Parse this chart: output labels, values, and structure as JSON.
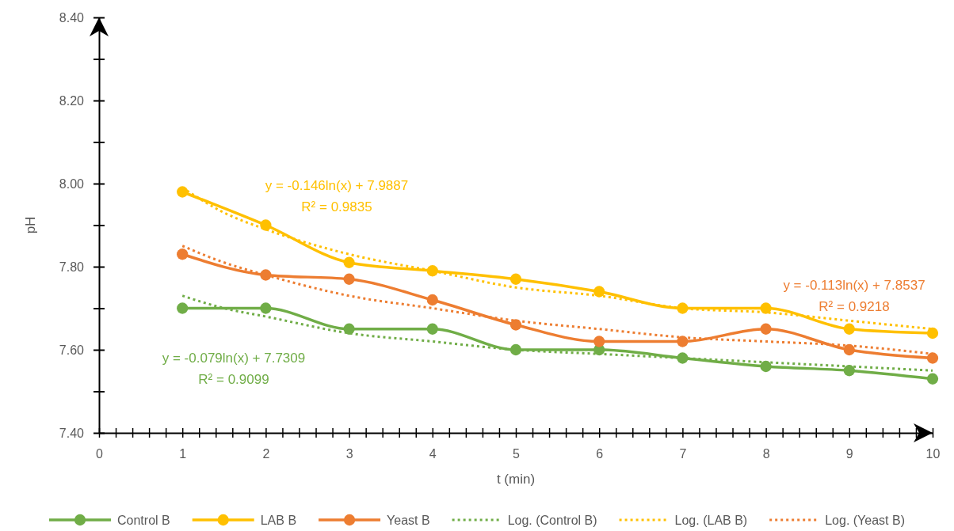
{
  "chart_data": {
    "type": "line",
    "xlabel": "t (min)",
    "ylabel": "pH",
    "x": [
      1,
      2,
      3,
      4,
      5,
      6,
      7,
      8,
      9,
      10
    ],
    "series": [
      {
        "name": "Control B",
        "color": "#70ad47",
        "values": [
          7.7,
          7.7,
          7.65,
          7.65,
          7.6,
          7.6,
          7.58,
          7.56,
          7.55,
          7.53
        ]
      },
      {
        "name": "LAB B",
        "color": "#ffc000",
        "values": [
          7.98,
          7.9,
          7.81,
          7.79,
          7.77,
          7.74,
          7.7,
          7.7,
          7.65,
          7.64
        ]
      },
      {
        "name": "Yeast B",
        "color": "#ed7d31",
        "values": [
          7.83,
          7.78,
          7.77,
          7.72,
          7.66,
          7.62,
          7.62,
          7.65,
          7.6,
          7.58
        ]
      },
      {
        "name": "Log. (Control B)",
        "type": "line",
        "color": "#70ad47",
        "line_style": "dotted",
        "marker": "none",
        "x": [
          1,
          1.5,
          2,
          3,
          4,
          5,
          6,
          7,
          8,
          9,
          10
        ],
        "values": [
          7.73,
          7.7,
          7.68,
          7.64,
          7.62,
          7.6,
          7.59,
          7.58,
          7.57,
          7.56,
          7.55
        ]
      },
      {
        "name": "Log. (LAB B)",
        "type": "line",
        "color": "#ffc000",
        "line_style": "dotted",
        "marker": "none",
        "x": [
          1,
          1.5,
          2,
          3,
          4,
          5,
          6,
          7,
          8,
          9,
          10
        ],
        "values": [
          7.99,
          7.93,
          7.89,
          7.83,
          7.79,
          7.75,
          7.73,
          7.7,
          7.69,
          7.67,
          7.65
        ]
      },
      {
        "name": "Log. (Yeast B)",
        "type": "line",
        "color": "#ed7d31",
        "line_style": "dotted",
        "marker": "none",
        "x": [
          1,
          1.5,
          2,
          3,
          4,
          5,
          6,
          7,
          8,
          9,
          10
        ],
        "values": [
          7.85,
          7.81,
          7.78,
          7.73,
          7.7,
          7.67,
          7.65,
          7.63,
          7.62,
          7.61,
          7.59
        ]
      }
    ],
    "xlim": [
      0,
      10
    ],
    "ylim": [
      7.4,
      8.4
    ],
    "xticks": [
      0,
      {
        "value": 0.2,
        "label": null
      },
      {
        "value": 0.4,
        "label": null
      },
      {
        "value": 0.6,
        "label": null
      },
      {
        "value": 0.8,
        "label": null
      },
      1,
      {
        "value": 1.2,
        "label": null
      },
      {
        "value": 1.4,
        "label": null
      },
      {
        "value": 1.6,
        "label": null
      },
      {
        "value": 1.8,
        "label": null
      },
      2,
      {
        "value": 2.2,
        "label": null
      },
      {
        "value": 2.4,
        "label": null
      },
      {
        "value": 2.6,
        "label": null
      },
      {
        "value": 2.8,
        "label": null
      },
      3,
      {
        "value": 3.2,
        "label": null
      },
      {
        "value": 3.4,
        "label": null
      },
      {
        "value": 3.6,
        "label": null
      },
      {
        "value": 3.8,
        "label": null
      },
      4,
      {
        "value": 4.2,
        "label": null
      },
      {
        "value": 4.4,
        "label": null
      },
      {
        "value": 4.6,
        "label": null
      },
      {
        "value": 4.8,
        "label": null
      },
      5,
      {
        "value": 5.2,
        "label": null
      },
      {
        "value": 5.4,
        "label": null
      },
      {
        "value": 5.6,
        "label": null
      },
      {
        "value": 5.8,
        "label": null
      },
      6,
      {
        "value": 6.2,
        "label": null
      },
      {
        "value": 6.4,
        "label": null
      },
      {
        "value": 6.6,
        "label": null
      },
      {
        "value": 6.8,
        "label": null
      },
      7,
      {
        "value": 7.2,
        "label": null
      },
      {
        "value": 7.4,
        "label": null
      },
      {
        "value": 7.6,
        "label": null
      },
      {
        "value": 7.8,
        "label": null
      },
      8,
      {
        "value": 8.2,
        "label": null
      },
      {
        "value": 8.4,
        "label": null
      },
      {
        "value": 8.6,
        "label": null
      },
      {
        "value": 8.8,
        "label": null
      },
      9,
      {
        "value": 9.2,
        "label": null
      },
      {
        "value": 9.4,
        "label": null
      },
      {
        "value": 9.6,
        "label": null
      },
      {
        "value": 9.8,
        "label": null
      },
      10
    ],
    "yticks": [
      {
        "value": 7.4,
        "label": "7.40"
      },
      {
        "value": 7.5,
        "label": null
      },
      {
        "value": 7.6,
        "label": "7.60"
      },
      {
        "value": 7.7,
        "label": null
      },
      {
        "value": 7.8,
        "label": "7.80"
      },
      {
        "value": 7.9,
        "label": null
      },
      {
        "value": 8.0,
        "label": "8.00"
      },
      {
        "value": 8.1,
        "label": null
      },
      {
        "value": 8.2,
        "label": "8.20"
      },
      {
        "value": 8.3,
        "label": null
      },
      {
        "value": 8.4,
        "label": "8.40"
      }
    ],
    "legend": "bottom",
    "marker": "circle",
    "line_style": "solid",
    "annotations": [
      "y = -0.079ln(x) + 7.7309\nR² = 0.9099",
      "y = -0.146ln(x) + 7.9887\nR² = 0.9835",
      "y = -0.113ln(x) + 7.8537\nR² = 0.9218"
    ]
  }
}
